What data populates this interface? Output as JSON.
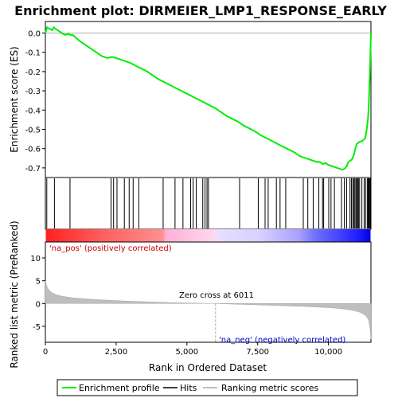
{
  "chart_data": {
    "type": "line",
    "title": "Enrichment plot: DIRMEIER_LMP1_RESPONSE_EARLY",
    "ylabel_top": "Enrichment score (ES)",
    "ylabel_bottom": "Ranked list metric (PreRanked)",
    "xlabel": "Rank in Ordered Dataset",
    "xlim": [
      0,
      11500
    ],
    "es_ylim": [
      -0.75,
      0.06
    ],
    "metric_ylim": [
      -8.5,
      13.5
    ],
    "x_ticks": [
      0,
      2500,
      5000,
      7500,
      10000
    ],
    "x_tick_labels": [
      "0",
      "2,500",
      "5,000",
      "7,500",
      "10,000"
    ],
    "es_ticks": [
      0.0,
      -0.1,
      -0.2,
      -0.3,
      -0.4,
      -0.5,
      -0.6,
      -0.7
    ],
    "es_tick_labels": [
      "0.0",
      "-0.1",
      "-0.2",
      "-0.3",
      "-0.4",
      "-0.5",
      "-0.6",
      "-0.7"
    ],
    "metric_ticks": [
      10,
      5,
      0,
      -5
    ],
    "metric_tick_labels": [
      "10",
      "5",
      "0",
      "-5"
    ],
    "zero_cross_label": "Zero cross at 6011",
    "zero_cross_rank": 6011,
    "pos_label": "'na_pos' (positively correlated)",
    "neg_label": "'na_neg' (negatively correlated)",
    "legend": {
      "enrichment_profile": "Enrichment profile",
      "hits": "Hits",
      "ranking_metric": "Ranking metric scores"
    },
    "colors": {
      "es_line": "#00ee00",
      "hits": "#000000",
      "metric_fill": "#bebebe",
      "pos_text": "#cc0000",
      "neg_text": "#0000cc",
      "zero_line": "#aaaaaa"
    },
    "enrichment_profile": {
      "x": [
        0,
        60,
        100,
        180,
        240,
        300,
        330,
        380,
        480,
        580,
        700,
        820,
        880,
        960,
        1050,
        1200,
        1400,
        1600,
        1800,
        2000,
        2200,
        2300,
        2400,
        2500,
        2600,
        2700,
        2800,
        2900,
        3000,
        3200,
        3400,
        3600,
        3800,
        4000,
        4200,
        4400,
        4600,
        4800,
        5000,
        5200,
        5400,
        5600,
        5800,
        6000,
        6200,
        6400,
        6600,
        6800,
        7000,
        7200,
        7400,
        7600,
        7800,
        8000,
        8200,
        8400,
        8600,
        8800,
        9000,
        9200,
        9400,
        9600,
        9700,
        9800,
        9900,
        10000,
        10100,
        10200,
        10300,
        10400,
        10500,
        10600,
        10650,
        10700,
        10800,
        10850,
        10900,
        10950,
        11000,
        11050,
        11100,
        11200,
        11300,
        11350,
        11400,
        11420,
        11440,
        11460,
        11480,
        11500
      ],
      "y": [
        0.0,
        0.03,
        0.025,
        0.02,
        0.015,
        0.03,
        0.025,
        0.02,
        0.01,
        0.0,
        -0.01,
        -0.005,
        -0.01,
        -0.01,
        -0.02,
        -0.04,
        -0.06,
        -0.08,
        -0.1,
        -0.12,
        -0.13,
        -0.125,
        -0.125,
        -0.13,
        -0.135,
        -0.14,
        -0.145,
        -0.15,
        -0.155,
        -0.17,
        -0.185,
        -0.2,
        -0.22,
        -0.24,
        -0.255,
        -0.27,
        -0.285,
        -0.3,
        -0.315,
        -0.33,
        -0.345,
        -0.36,
        -0.375,
        -0.39,
        -0.41,
        -0.43,
        -0.445,
        -0.46,
        -0.48,
        -0.495,
        -0.51,
        -0.53,
        -0.545,
        -0.56,
        -0.575,
        -0.59,
        -0.605,
        -0.62,
        -0.64,
        -0.65,
        -0.66,
        -0.67,
        -0.67,
        -0.68,
        -0.675,
        -0.685,
        -0.69,
        -0.695,
        -0.7,
        -0.705,
        -0.71,
        -0.7,
        -0.69,
        -0.67,
        -0.66,
        -0.65,
        -0.63,
        -0.6,
        -0.575,
        -0.57,
        -0.565,
        -0.56,
        -0.545,
        -0.5,
        -0.44,
        -0.38,
        -0.3,
        -0.22,
        -0.12,
        0.0
      ]
    },
    "hit_ranks": [
      50,
      320,
      870,
      2320,
      2410,
      2530,
      2790,
      2960,
      3100,
      3300,
      4160,
      4580,
      4860,
      5130,
      5220,
      5330,
      5560,
      5640,
      5710,
      5760,
      6860,
      7520,
      7760,
      7870,
      8160,
      8290,
      8490,
      9110,
      9270,
      9460,
      9660,
      9790,
      9830,
      10010,
      10090,
      10210,
      10460,
      10560,
      10640,
      10760,
      10810,
      10860,
      10890,
      10930,
      10970,
      11000,
      11030,
      11060,
      11100,
      11180,
      11260,
      11310,
      11370,
      11400,
      11430,
      11460,
      11480,
      11495
    ],
    "ranking_metric": {
      "x": [
        0,
        30,
        80,
        150,
        250,
        400,
        600,
        800,
        1000,
        1300,
        1600,
        2000,
        2500,
        3000,
        3500,
        4000,
        4500,
        5000,
        5500,
        6011,
        6500,
        7000,
        7500,
        8000,
        8500,
        9000,
        9500,
        10000,
        10300,
        10600,
        10800,
        11000,
        11100,
        11200,
        11300,
        11380,
        11430,
        11470,
        11500
      ],
      "y": [
        5.0,
        4.2,
        3.4,
        2.8,
        2.3,
        1.9,
        1.6,
        1.4,
        1.25,
        1.1,
        0.95,
        0.8,
        0.65,
        0.5,
        0.4,
        0.3,
        0.2,
        0.12,
        0.05,
        0.0,
        -0.1,
        -0.2,
        -0.3,
        -0.4,
        -0.5,
        -0.6,
        -0.75,
        -0.9,
        -1.05,
        -1.25,
        -1.45,
        -1.7,
        -1.9,
        -2.2,
        -2.6,
        -3.2,
        -4.0,
        -5.5,
        -7.8
      ]
    }
  }
}
